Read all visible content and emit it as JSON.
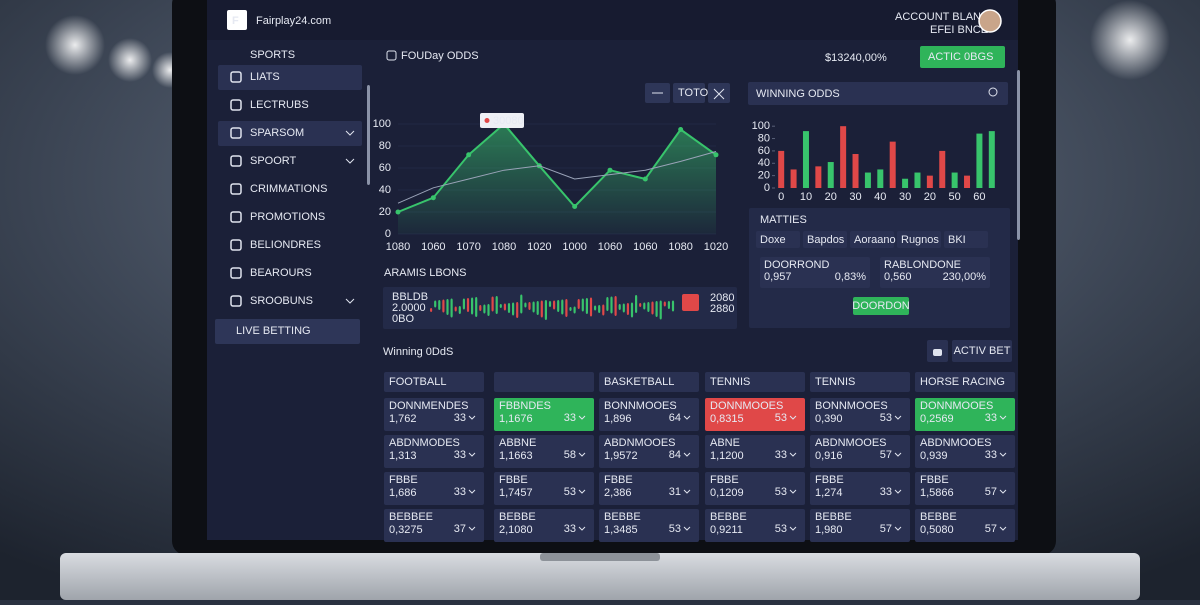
{
  "header": {
    "brand": "Fairplay24.com",
    "account_label": "ACCOUNT BLANCE",
    "account_sub": "EFEI BNCE",
    "balance": "$13240,00%",
    "bets_button": "ACTIC 0BGS"
  },
  "sidebar": {
    "title": "SPORTS",
    "items": [
      "LIATS",
      "LECTRUBS",
      "SPARSOM",
      "SPOORT",
      "CRIMMATIONS",
      "PROMOTIONS",
      "BELIONDRES",
      "BEAROURS",
      "SROOBUNS"
    ],
    "live": "LIVE BETTING"
  },
  "odds_panel": {
    "title": "FOUDay ODDS",
    "control": "TOTO",
    "tooltip": "30080",
    "chart": {
      "type": "line",
      "categories": [
        "1080",
        "1060",
        "1070",
        "1080",
        "1020",
        "1000",
        "1060",
        "1060",
        "1080",
        "1020"
      ],
      "series": [
        {
          "color": "#38c46c",
          "values": [
            20,
            33,
            72,
            100,
            62,
            25,
            58,
            50,
            95,
            72
          ]
        },
        {
          "color": "#9aa3b8",
          "values": [
            28,
            42,
            50,
            58,
            62,
            50,
            54,
            58,
            66,
            75
          ]
        }
      ],
      "ylim": [
        0,
        110
      ],
      "yticks": [
        0,
        20,
        40,
        60,
        80,
        100
      ]
    }
  },
  "winning_panel": {
    "title": "WINNING ODDS",
    "chart": {
      "type": "bar",
      "categories": [
        "0",
        null,
        "10",
        null,
        "20",
        null,
        "30",
        null,
        "40",
        null,
        "30",
        null,
        "20",
        null,
        "50",
        null,
        "60",
        null
      ],
      "values": [
        60,
        30,
        92,
        35,
        42,
        100,
        55,
        25,
        30,
        75,
        15,
        25,
        20,
        60,
        25,
        20,
        88,
        92
      ],
      "colors": [
        "#e04848",
        "#e04848",
        "#38c46c",
        "#e04848",
        "#38c46c",
        "#e04848",
        "#e04848",
        "#38c46c",
        "#38c46c",
        "#e04848",
        "#38c46c",
        "#38c46c",
        "#e04848",
        "#e04848",
        "#38c46c",
        "#e04848",
        "#38c46c",
        "#38c46c"
      ],
      "ylim": [
        0,
        110
      ],
      "yticks": [
        0,
        20,
        40,
        60,
        80,
        100
      ]
    }
  },
  "strip": {
    "title": "ARAMIS LBONS",
    "left_labels": [
      "BBLDB",
      "2.0000",
      "0BO"
    ],
    "right_labels": [
      "2080",
      "2880"
    ]
  },
  "matches": {
    "title": "MATTIES",
    "columns": [
      "Doxe",
      "Bapdos",
      "Aoraano",
      "Rugnos",
      "BKI"
    ],
    "cells": [
      {
        "label": "DOORROND",
        "odds": "0,957",
        "pct": "0,83%"
      },
      {
        "label": "RABLONDONE",
        "odds": "0,560",
        "pct": "230,00%"
      }
    ],
    "button": "DOORDON"
  },
  "winning_odds": {
    "title": "Winning 0DdS",
    "button": "ACTIV BET",
    "columns": [
      {
        "header": "FOOTBALL",
        "cells": [
          {
            "label": "DONNMENDES",
            "odds": "1,762",
            "count": 33
          },
          {
            "label": "ABDNMODES",
            "odds": "1,313",
            "count": 33
          },
          {
            "label": "FBBE",
            "odds": "1,686",
            "count": 33
          },
          {
            "label": "BEBBEE",
            "odds": "0,3275",
            "count": 37
          }
        ]
      },
      {
        "cells": [
          {
            "label": "FBBNDES",
            "odds": "1,1676",
            "count": 33,
            "color": "#2fb45a"
          },
          {
            "label": "ABBNE",
            "odds": "1,1663",
            "count": 58
          },
          {
            "label": "FBBE",
            "odds": "1,7457",
            "count": 53
          },
          {
            "label": "BEBBE",
            "odds": "2,1080",
            "count": 33
          }
        ]
      },
      {
        "header": "BASKETBALL",
        "cells": [
          {
            "label": "BONNMOOES",
            "odds": "1,896",
            "count": 64
          },
          {
            "label": "ABDNMOOES",
            "odds": "1,9572",
            "count": 84
          },
          {
            "label": "FBBE",
            "odds": "2,386",
            "count": 31
          },
          {
            "label": "BEBBE",
            "odds": "1,3485",
            "count": 53
          }
        ]
      },
      {
        "header": "TENNIS",
        "cells": [
          {
            "label": "DONNMOOES",
            "odds": "0,8315",
            "count": 53,
            "color": "#e04848"
          },
          {
            "label": "ABNE",
            "odds": "1,1200",
            "count": 33
          },
          {
            "label": "FBBE",
            "odds": "0,1209",
            "count": 53
          },
          {
            "label": "BEBBE",
            "odds": "0,9211",
            "count": 53
          }
        ]
      },
      {
        "header": "TENNIS",
        "cells": [
          {
            "label": "BONNMOOES",
            "odds": "0,390",
            "count": 53
          },
          {
            "label": "ABDNMOOES",
            "odds": "0,916",
            "count": 57
          },
          {
            "label": "FBBE",
            "odds": "1,274",
            "count": 33
          },
          {
            "label": "BEBBE",
            "odds": "1,980",
            "count": 57
          }
        ]
      },
      {
        "header": "HORSE RACING",
        "cells": [
          {
            "label": "DONNMOOES",
            "odds": "0,2569",
            "count": 33,
            "color": "#2fb45a"
          },
          {
            "label": "ABDNMOOES",
            "odds": "0,939",
            "count": 33
          },
          {
            "label": "FBBE",
            "odds": "1,5866",
            "count": 57
          },
          {
            "label": "BEBBE",
            "odds": "0,5080",
            "count": 57
          }
        ]
      }
    ]
  }
}
